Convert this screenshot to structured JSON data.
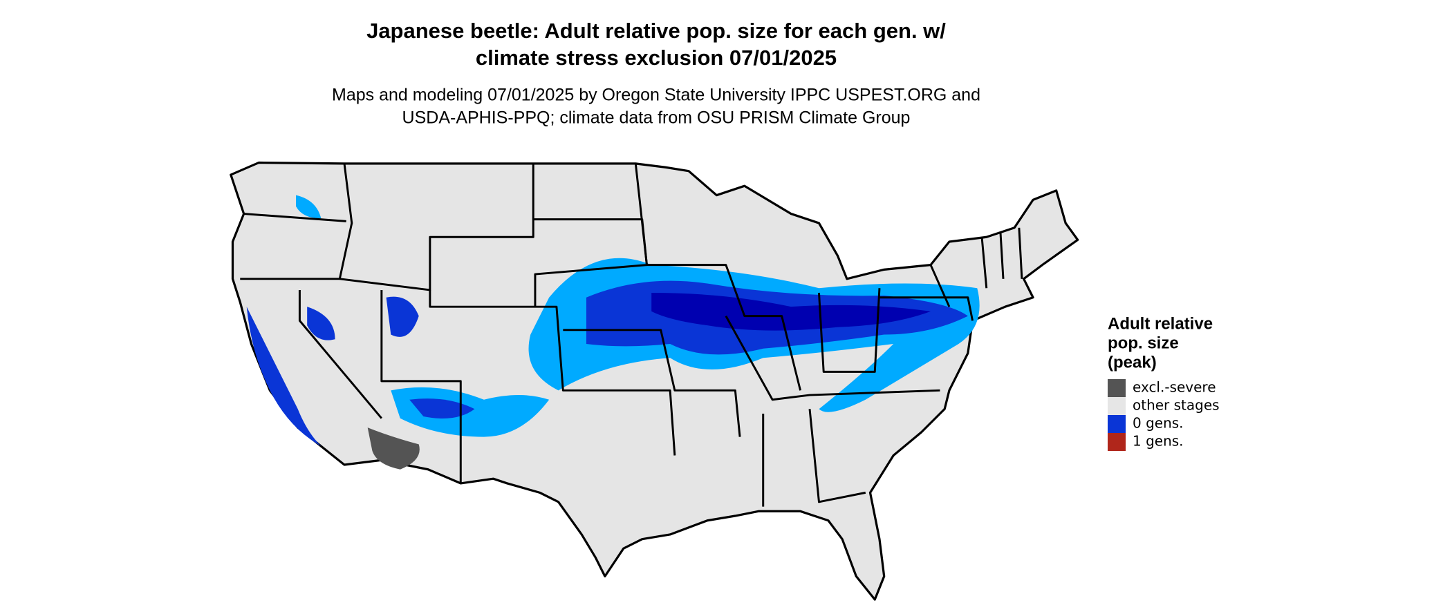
{
  "header": {
    "title_lines": [
      "Japanese beetle: Adult relative pop. size for each gen. w/",
      "climate stress exclusion 07/01/2025"
    ],
    "subtitle_lines": [
      "Maps and modeling 07/01/2025 by Oregon State University IPPC USPEST.ORG and",
      "USDA-APHIS-PPQ; climate data from OSU PRISM Climate Group"
    ]
  },
  "legend": {
    "title_lines": [
      "Adult relative",
      "pop. size",
      "(peak)"
    ],
    "items": [
      {
        "label": "excl.-severe",
        "color": "#545454"
      },
      {
        "label": "other stages",
        "color": "#e6e6e6"
      },
      {
        "label": "0 gens.",
        "color": "#0a35d6"
      },
      {
        "label": "1 gens.",
        "color": "#b0261b"
      }
    ]
  }
}
